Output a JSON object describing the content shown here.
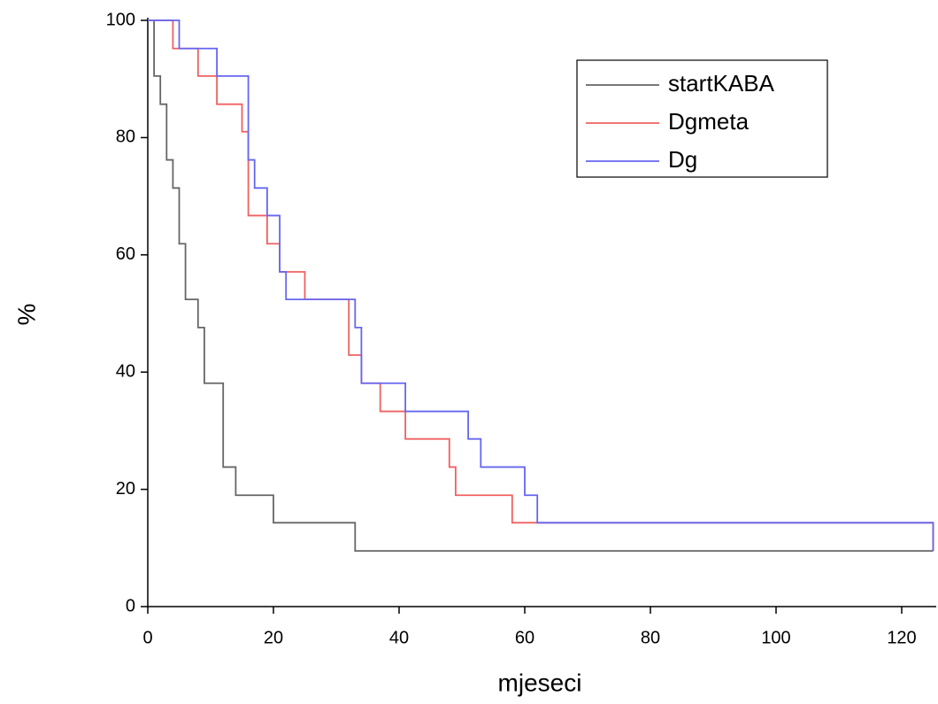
{
  "chart_data": {
    "type": "step",
    "xlabel": "mjeseci",
    "ylabel": "%",
    "xlim": [
      0,
      125
    ],
    "ylim": [
      0,
      100
    ],
    "xticks": [
      0,
      20,
      40,
      60,
      80,
      100,
      120
    ],
    "yticks": [
      0,
      20,
      40,
      60,
      80,
      100
    ],
    "legend": "upper right",
    "series": [
      {
        "name": "startKABA",
        "color": "#666666",
        "x": [
          0,
          1,
          2,
          3,
          4,
          5,
          6,
          8,
          9,
          12,
          14,
          20,
          33,
          125
        ],
        "values": [
          100,
          90.5,
          85.7,
          76.2,
          71.4,
          61.9,
          52.4,
          47.6,
          38.1,
          23.8,
          19,
          14.3,
          9.5,
          9.5
        ]
      },
      {
        "name": "Dgmeta",
        "color": "#f06060",
        "x": [
          0,
          4,
          8,
          11,
          15,
          16,
          19,
          21,
          25,
          32,
          34,
          37,
          41,
          48,
          49,
          58,
          125
        ],
        "values": [
          100,
          95.2,
          90.5,
          85.7,
          81,
          66.7,
          61.9,
          57.1,
          52.4,
          42.9,
          38.1,
          33.3,
          28.6,
          23.8,
          19,
          14.3,
          9.5
        ]
      },
      {
        "name": "Dg",
        "color": "#6666f0",
        "x": [
          0,
          5,
          11,
          16,
          17,
          19,
          21,
          22,
          33,
          34,
          41,
          51,
          53,
          60,
          62,
          125
        ],
        "values": [
          100,
          95.2,
          90.5,
          76.2,
          71.4,
          66.7,
          57.1,
          52.4,
          47.6,
          38.1,
          33.3,
          28.6,
          23.8,
          19,
          14.3,
          9.5
        ]
      }
    ]
  }
}
